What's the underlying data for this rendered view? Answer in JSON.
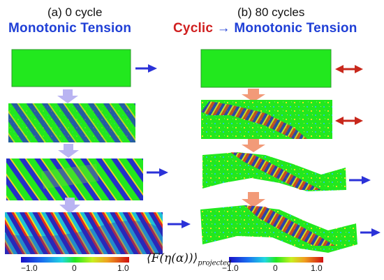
{
  "left": {
    "caption": "(a) 0 cycle",
    "heading": "Monotonic Tension"
  },
  "right": {
    "caption": "(b) 80 cycles",
    "heading_cyclic": "Cyclic",
    "heading_arrow": "→",
    "heading_rest": "Monotonic Tension"
  },
  "colorbar_left": {
    "min": "−1.0",
    "mid": "0",
    "max": "1.0"
  },
  "colorbar_right": {
    "min": "−1.0",
    "mid": "0",
    "max": "1.0"
  },
  "legend_formula": {
    "main": "⟨F(η(α))⟩",
    "sub": "projected"
  },
  "colors": {
    "base_green": "#22e81e",
    "blue_arrow": "#2b32d8",
    "red_arrow": "#c8281c",
    "down_arrow_left": "#b9b4f2",
    "down_arrow_right": "#f29a78"
  }
}
